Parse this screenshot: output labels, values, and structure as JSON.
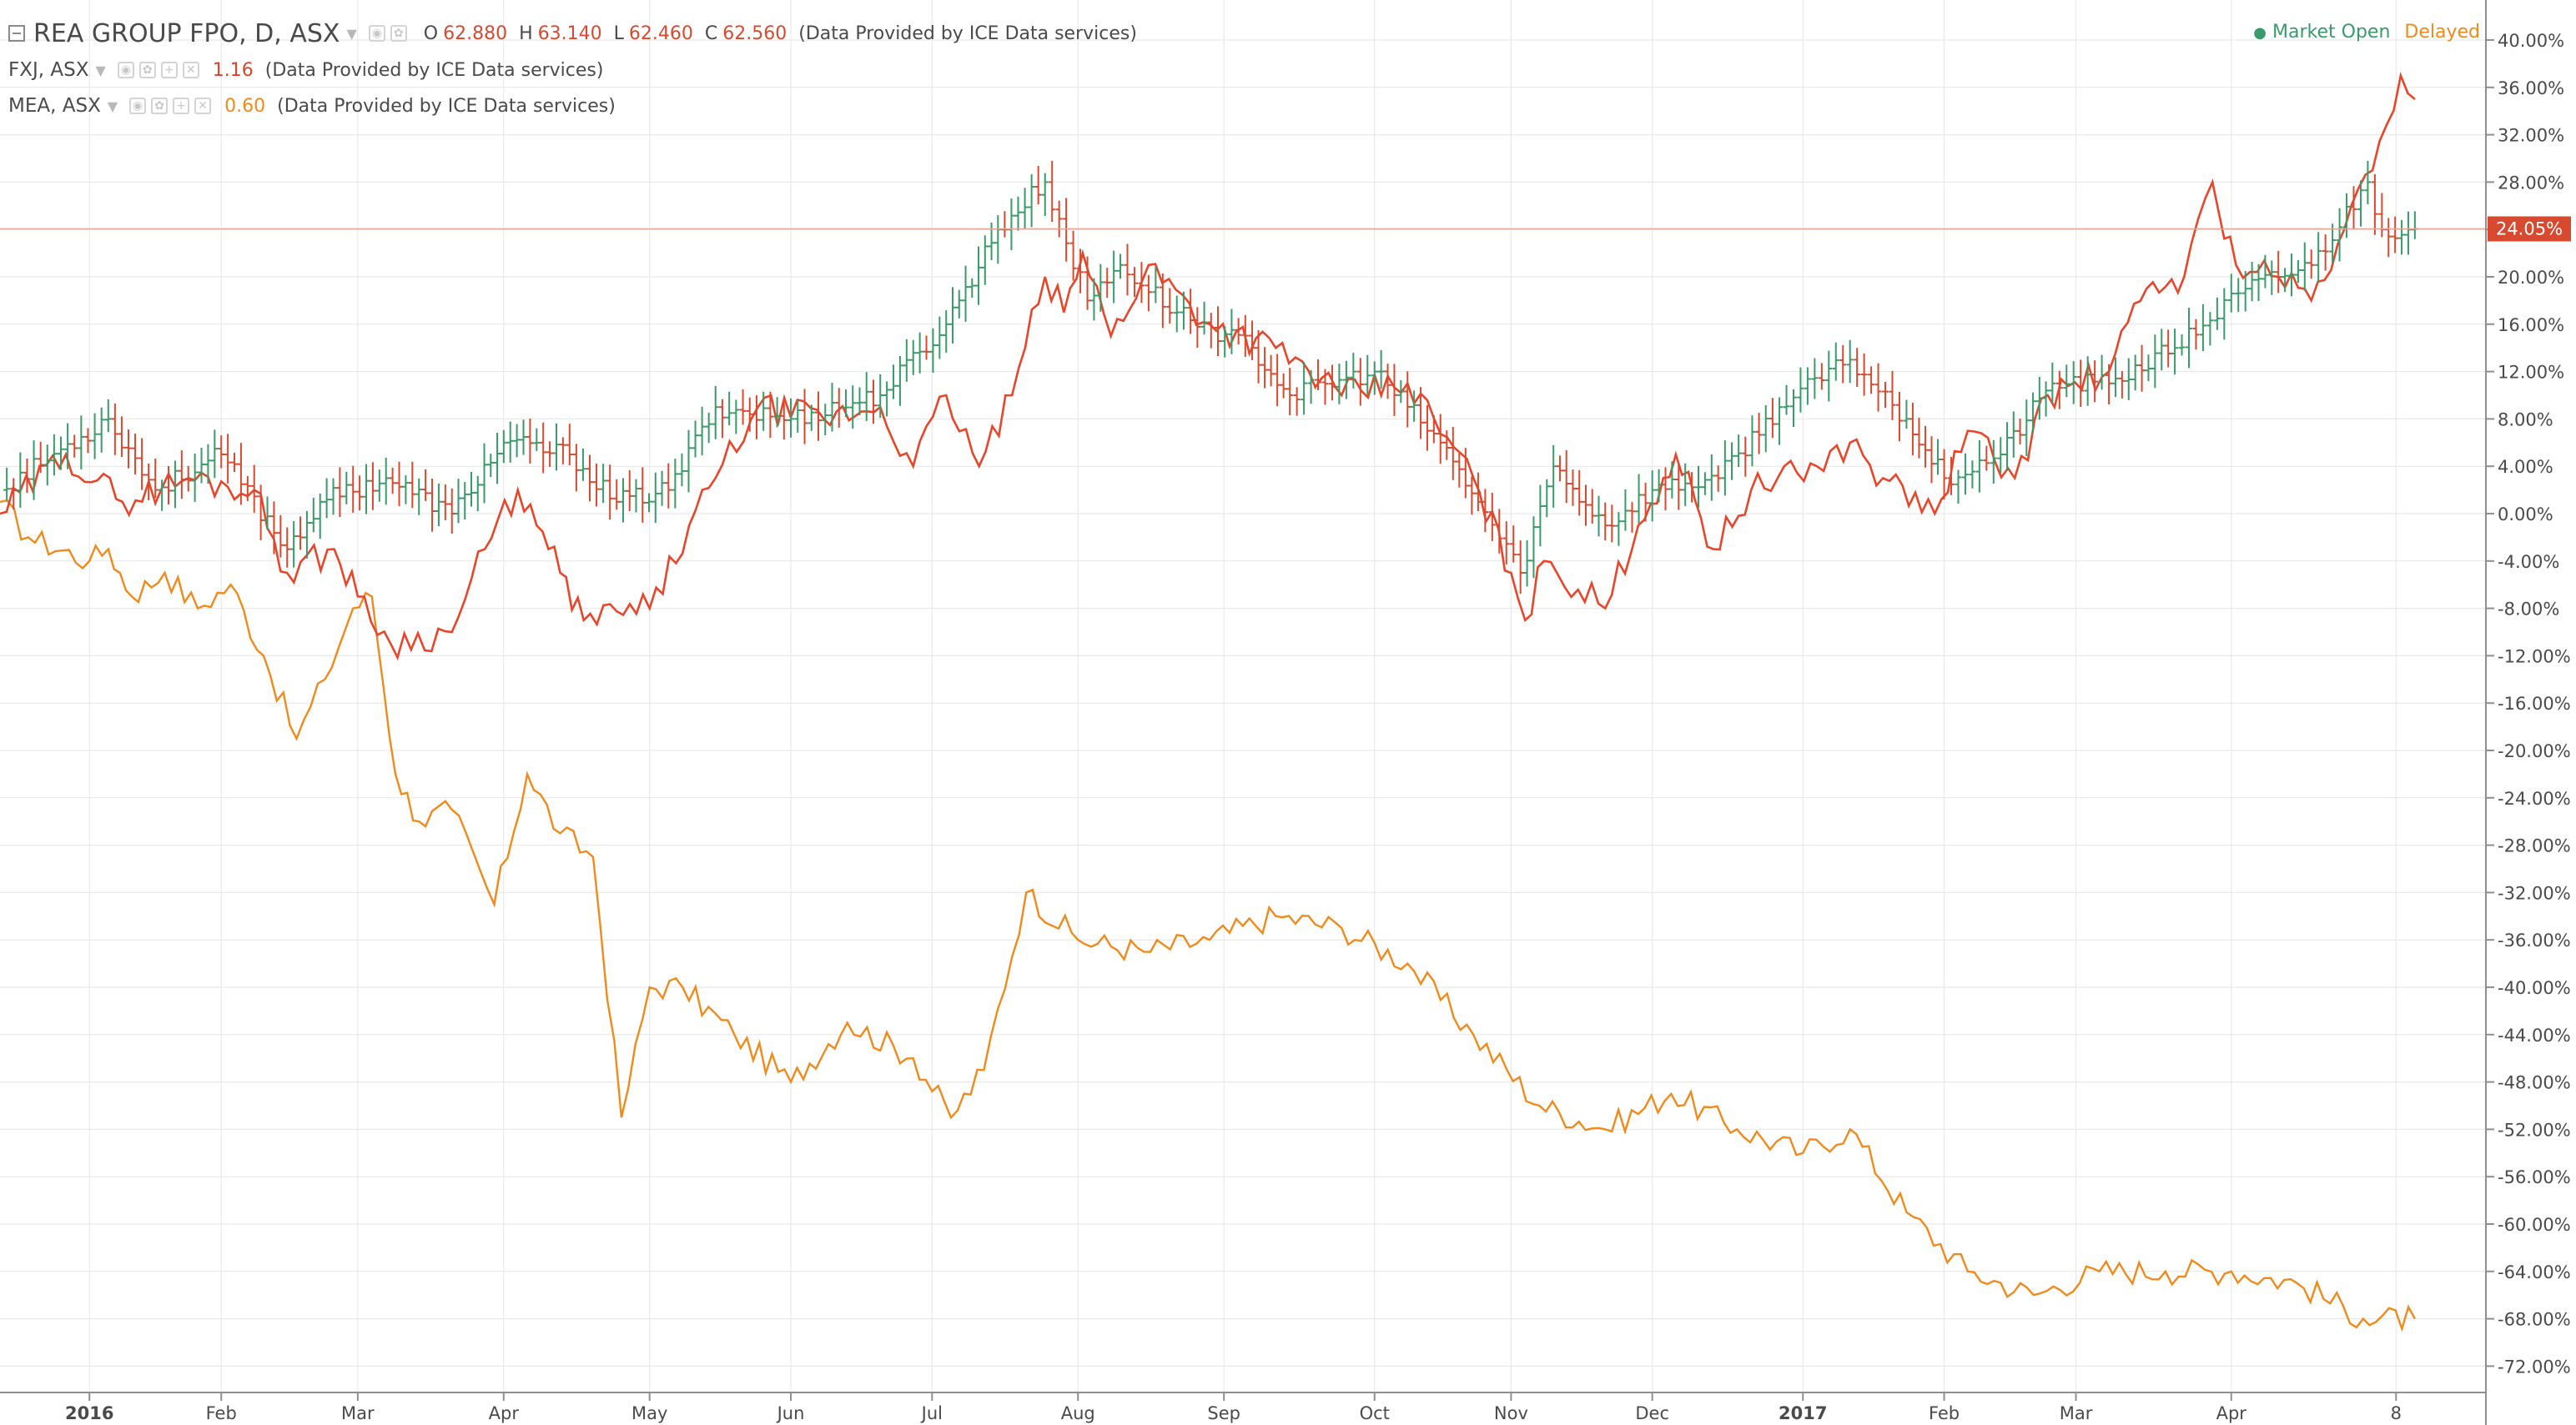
{
  "header": {
    "main_symbol": "REA GROUP FPO, D, ASX",
    "ohlc": [
      {
        "key": "O",
        "value": "62.880"
      },
      {
        "key": "H",
        "value": "63.140"
      },
      {
        "key": "L",
        "value": "62.460"
      },
      {
        "key": "C",
        "value": "62.560"
      }
    ],
    "provider": "(Data Provided by ICE Data services)",
    "compare": [
      {
        "symbol": "FXJ, ASX",
        "value": "1.16",
        "provider": "(Data Provided by ICE Data services)"
      },
      {
        "symbol": "MEA, ASX",
        "value": "0.60",
        "provider": "(Data Provided by ICE Data services)"
      }
    ],
    "market_status": "Market Open",
    "delay_status": "Delayed"
  },
  "colors": {
    "rea_up": "#3b9a6a",
    "rea_down": "#d74a2f",
    "fxj": "#e8452a",
    "mea": "#f08a1c",
    "grid": "#e6e6e6",
    "last_price_bg": "#d74a2f"
  },
  "chart_data": {
    "type": "line",
    "title": "",
    "xlabel": "",
    "ylabel": "",
    "y_unit": "percent",
    "ylim": [
      -75,
      42
    ],
    "y_ticks": [
      "40.00%",
      "36.00%",
      "32.00%",
      "28.00%",
      "24.00%",
      "20.00%",
      "16.00%",
      "12.00%",
      "8.00%",
      "4.00%",
      "0.00%",
      "-4.00%",
      "-8.00%",
      "-12.00%",
      "-16.00%",
      "-20.00%",
      "-24.00%",
      "-28.00%",
      "-32.00%",
      "-36.00%",
      "-40.00%",
      "-44.00%",
      "-48.00%",
      "-52.00%",
      "-56.00%",
      "-60.00%",
      "-64.00%",
      "-68.00%",
      "-72.00%"
    ],
    "x_ticks": [
      {
        "label": "2016",
        "date": "2016-01-04",
        "bold": true
      },
      {
        "label": "Feb",
        "date": "2016-02-01"
      },
      {
        "label": "Mar",
        "date": "2016-03-01"
      },
      {
        "label": "Apr",
        "date": "2016-04-01"
      },
      {
        "label": "May",
        "date": "2016-05-02"
      },
      {
        "label": "Jun",
        "date": "2016-06-01"
      },
      {
        "label": "Jul",
        "date": "2016-07-01"
      },
      {
        "label": "Aug",
        "date": "2016-08-01"
      },
      {
        "label": "Sep",
        "date": "2016-09-01"
      },
      {
        "label": "Oct",
        "date": "2016-10-03"
      },
      {
        "label": "Nov",
        "date": "2016-11-01"
      },
      {
        "label": "Dec",
        "date": "2016-12-01"
      },
      {
        "label": "2017",
        "date": "2017-01-02",
        "bold": true
      },
      {
        "label": "Feb",
        "date": "2017-02-01"
      },
      {
        "label": "Mar",
        "date": "2017-03-01"
      },
      {
        "label": "Apr",
        "date": "2017-04-03"
      },
      {
        "label": "8",
        "date": "2017-05-08"
      }
    ],
    "xlim": [
      "2015-12-16",
      "2017-05-20"
    ],
    "last_value_label": "24.05%",
    "last_value": 24.05,
    "grid": true,
    "legend": "top-left",
    "series": [
      {
        "name": "REA GROUP FPO",
        "type": "ohlc",
        "points": [
          {
            "date": "2015-12-16",
            "value": 2
          },
          {
            "date": "2016-01-08",
            "value": 8
          },
          {
            "date": "2016-01-18",
            "value": 2
          },
          {
            "date": "2016-02-01",
            "value": 5
          },
          {
            "date": "2016-02-15",
            "value": -3
          },
          {
            "date": "2016-02-22",
            "value": 1
          },
          {
            "date": "2016-03-07",
            "value": 3
          },
          {
            "date": "2016-03-21",
            "value": 0
          },
          {
            "date": "2016-04-01",
            "value": 6
          },
          {
            "date": "2016-04-15",
            "value": 5
          },
          {
            "date": "2016-04-25",
            "value": 1
          },
          {
            "date": "2016-05-06",
            "value": 2
          },
          {
            "date": "2016-05-16",
            "value": 9
          },
          {
            "date": "2016-06-01",
            "value": 8
          },
          {
            "date": "2016-06-20",
            "value": 10
          },
          {
            "date": "2016-07-04",
            "value": 16
          },
          {
            "date": "2016-07-15",
            "value": 24
          },
          {
            "date": "2016-07-25",
            "value": 28
          },
          {
            "date": "2016-08-03",
            "value": 18
          },
          {
            "date": "2016-08-10",
            "value": 21
          },
          {
            "date": "2016-08-22",
            "value": 17
          },
          {
            "date": "2016-09-07",
            "value": 14
          },
          {
            "date": "2016-09-15",
            "value": 10
          },
          {
            "date": "2016-10-03",
            "value": 12
          },
          {
            "date": "2016-10-17",
            "value": 6
          },
          {
            "date": "2016-10-25",
            "value": 1
          },
          {
            "date": "2016-11-03",
            "value": -5
          },
          {
            "date": "2016-11-10",
            "value": 4
          },
          {
            "date": "2016-11-21",
            "value": -1
          },
          {
            "date": "2016-12-01",
            "value": 2
          },
          {
            "date": "2016-12-15",
            "value": 3
          },
          {
            "date": "2016-12-28",
            "value": 9
          },
          {
            "date": "2017-01-12",
            "value": 13
          },
          {
            "date": "2017-01-24",
            "value": 8
          },
          {
            "date": "2017-02-01",
            "value": 3
          },
          {
            "date": "2017-02-13",
            "value": 5
          },
          {
            "date": "2017-02-24",
            "value": 11
          },
          {
            "date": "2017-03-08",
            "value": 11
          },
          {
            "date": "2017-03-22",
            "value": 14
          },
          {
            "date": "2017-04-06",
            "value": 19
          },
          {
            "date": "2017-04-20",
            "value": 21
          },
          {
            "date": "2017-05-02",
            "value": 28
          },
          {
            "date": "2017-05-05",
            "value": 24
          },
          {
            "date": "2017-05-12",
            "value": 24.05
          }
        ]
      },
      {
        "name": "FXJ, ASX",
        "type": "line",
        "points": [
          {
            "date": "2015-12-16",
            "value": 0
          },
          {
            "date": "2015-12-30",
            "value": 5
          },
          {
            "date": "2016-01-11",
            "value": 1
          },
          {
            "date": "2016-01-25",
            "value": 3
          },
          {
            "date": "2016-02-08",
            "value": 2
          },
          {
            "date": "2016-02-15",
            "value": -5
          },
          {
            "date": "2016-02-25",
            "value": -3
          },
          {
            "date": "2016-03-01",
            "value": -7
          },
          {
            "date": "2016-03-08",
            "value": -11
          },
          {
            "date": "2016-03-21",
            "value": -10
          },
          {
            "date": "2016-03-28",
            "value": -3
          },
          {
            "date": "2016-04-04",
            "value": 2
          },
          {
            "date": "2016-04-08",
            "value": -1
          },
          {
            "date": "2016-04-13",
            "value": -5
          },
          {
            "date": "2016-04-18",
            "value": -9
          },
          {
            "date": "2016-05-02",
            "value": -8
          },
          {
            "date": "2016-05-16",
            "value": 3
          },
          {
            "date": "2016-05-25",
            "value": 9
          },
          {
            "date": "2016-06-08",
            "value": 8
          },
          {
            "date": "2016-06-20",
            "value": 9
          },
          {
            "date": "2016-06-27",
            "value": 4
          },
          {
            "date": "2016-07-04",
            "value": 10
          },
          {
            "date": "2016-07-11",
            "value": 4
          },
          {
            "date": "2016-07-18",
            "value": 10
          },
          {
            "date": "2016-07-25",
            "value": 20
          },
          {
            "date": "2016-07-29",
            "value": 17
          },
          {
            "date": "2016-08-02",
            "value": 22
          },
          {
            "date": "2016-08-08",
            "value": 15
          },
          {
            "date": "2016-08-16",
            "value": 21
          },
          {
            "date": "2016-08-29",
            "value": 16
          },
          {
            "date": "2016-09-12",
            "value": 14
          },
          {
            "date": "2016-09-26",
            "value": 10
          },
          {
            "date": "2016-10-10",
            "value": 11
          },
          {
            "date": "2016-10-24",
            "value": 3
          },
          {
            "date": "2016-11-01",
            "value": -5
          },
          {
            "date": "2016-11-04",
            "value": -9
          },
          {
            "date": "2016-11-08",
            "value": -4
          },
          {
            "date": "2016-11-21",
            "value": -8
          },
          {
            "date": "2016-11-28",
            "value": -1
          },
          {
            "date": "2016-12-06",
            "value": 5
          },
          {
            "date": "2016-12-14",
            "value": -3
          },
          {
            "date": "2016-12-22",
            "value": 2
          },
          {
            "date": "2017-01-05",
            "value": 4
          },
          {
            "date": "2017-01-12",
            "value": 6
          },
          {
            "date": "2017-01-19",
            "value": 3
          },
          {
            "date": "2017-01-30",
            "value": 0
          },
          {
            "date": "2017-02-06",
            "value": 7
          },
          {
            "date": "2017-02-16",
            "value": 3
          },
          {
            "date": "2017-02-23",
            "value": 10
          },
          {
            "date": "2017-03-08",
            "value": 12
          },
          {
            "date": "2017-03-16",
            "value": 19
          },
          {
            "date": "2017-03-24",
            "value": 20
          },
          {
            "date": "2017-03-30",
            "value": 28
          },
          {
            "date": "2017-04-04",
            "value": 21
          },
          {
            "date": "2017-04-13",
            "value": 20
          },
          {
            "date": "2017-04-20",
            "value": 18
          },
          {
            "date": "2017-04-27",
            "value": 24
          },
          {
            "date": "2017-05-03",
            "value": 29
          },
          {
            "date": "2017-05-09",
            "value": 37
          },
          {
            "date": "2017-05-12",
            "value": 35
          }
        ]
      },
      {
        "name": "MEA, ASX",
        "type": "line",
        "points": [
          {
            "date": "2015-12-16",
            "value": 1
          },
          {
            "date": "2015-12-22",
            "value": -2
          },
          {
            "date": "2016-01-04",
            "value": -4
          },
          {
            "date": "2016-01-08",
            "value": -3
          },
          {
            "date": "2016-01-13",
            "value": -7
          },
          {
            "date": "2016-01-20",
            "value": -5
          },
          {
            "date": "2016-01-27",
            "value": -8
          },
          {
            "date": "2016-02-03",
            "value": -6
          },
          {
            "date": "2016-02-10",
            "value": -12
          },
          {
            "date": "2016-02-17",
            "value": -19
          },
          {
            "date": "2016-02-23",
            "value": -14
          },
          {
            "date": "2016-02-29",
            "value": -8
          },
          {
            "date": "2016-03-04",
            "value": -7
          },
          {
            "date": "2016-03-09",
            "value": -22
          },
          {
            "date": "2016-03-14",
            "value": -26
          },
          {
            "date": "2016-03-21",
            "value": -25
          },
          {
            "date": "2016-03-30",
            "value": -33
          },
          {
            "date": "2016-04-06",
            "value": -22
          },
          {
            "date": "2016-04-13",
            "value": -27
          },
          {
            "date": "2016-04-20",
            "value": -29
          },
          {
            "date": "2016-04-26",
            "value": -51
          },
          {
            "date": "2016-05-02",
            "value": -40
          },
          {
            "date": "2016-05-09",
            "value": -40
          },
          {
            "date": "2016-05-20",
            "value": -44
          },
          {
            "date": "2016-06-01",
            "value": -48
          },
          {
            "date": "2016-06-13",
            "value": -43
          },
          {
            "date": "2016-06-27",
            "value": -46
          },
          {
            "date": "2016-07-05",
            "value": -51
          },
          {
            "date": "2016-07-12",
            "value": -47
          },
          {
            "date": "2016-07-21",
            "value": -32
          },
          {
            "date": "2016-08-01",
            "value": -36
          },
          {
            "date": "2016-08-15",
            "value": -37
          },
          {
            "date": "2016-08-29",
            "value": -36
          },
          {
            "date": "2016-09-12",
            "value": -34
          },
          {
            "date": "2016-09-26",
            "value": -35
          },
          {
            "date": "2016-10-10",
            "value": -38
          },
          {
            "date": "2016-10-24",
            "value": -44
          },
          {
            "date": "2016-11-07",
            "value": -50
          },
          {
            "date": "2016-11-21",
            "value": -52
          },
          {
            "date": "2016-12-05",
            "value": -49
          },
          {
            "date": "2016-12-19",
            "value": -52
          },
          {
            "date": "2017-01-02",
            "value": -54
          },
          {
            "date": "2017-01-12",
            "value": -52
          },
          {
            "date": "2017-01-24",
            "value": -59
          },
          {
            "date": "2017-02-06",
            "value": -64
          },
          {
            "date": "2017-02-20",
            "value": -66
          },
          {
            "date": "2017-03-06",
            "value": -64
          },
          {
            "date": "2017-03-20",
            "value": -64
          },
          {
            "date": "2017-04-03",
            "value": -64
          },
          {
            "date": "2017-04-17",
            "value": -65
          },
          {
            "date": "2017-05-01",
            "value": -68
          },
          {
            "date": "2017-05-12",
            "value": -68
          }
        ]
      }
    ]
  }
}
